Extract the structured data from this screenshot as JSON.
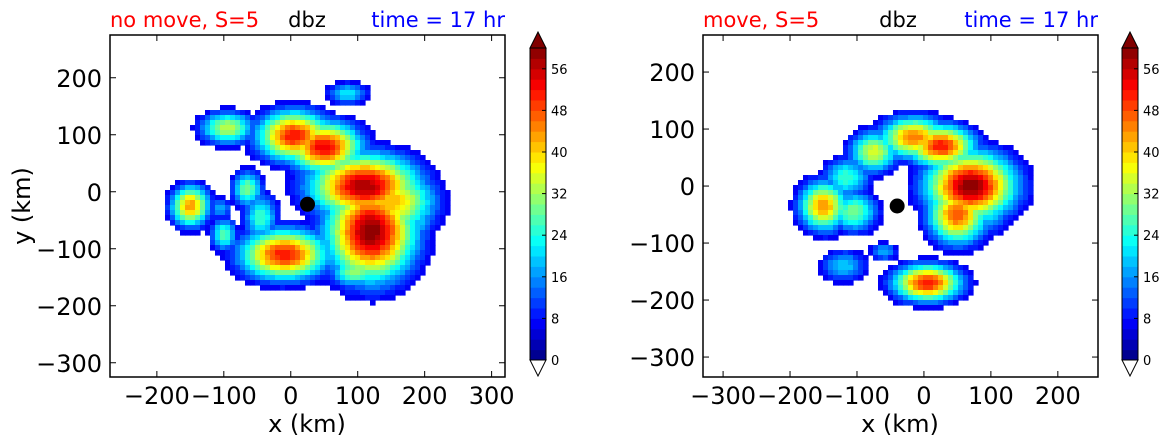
{
  "chart_data": [
    {
      "type": "heatmap",
      "title_left": "no move, S=5",
      "title_center": "dbz",
      "title_right": "time = 17 hr",
      "xlabel": "x (km)",
      "ylabel": "y (km)",
      "xlim": [
        -270,
        320
      ],
      "ylim": [
        -325,
        275
      ],
      "xticks": [
        -200,
        -100,
        0,
        100,
        200,
        300
      ],
      "yticks": [
        -300,
        -200,
        -100,
        0,
        100,
        200
      ],
      "marker": {
        "x": 25,
        "y": -22
      },
      "cells": [
        {
          "x": 5,
          "y": 98,
          "sx": 38,
          "sy": 30,
          "peak": 52
        },
        {
          "x": 50,
          "y": 78,
          "sx": 38,
          "sy": 30,
          "peak": 54
        },
        {
          "x": 85,
          "y": 172,
          "sx": 22,
          "sy": 14,
          "peak": 22
        },
        {
          "x": -95,
          "y": 112,
          "sx": 28,
          "sy": 20,
          "peak": 34
        },
        {
          "x": 110,
          "y": 10,
          "sx": 55,
          "sy": 38,
          "peak": 58
        },
        {
          "x": 150,
          "y": -18,
          "sx": 45,
          "sy": 38,
          "peak": 42
        },
        {
          "x": 120,
          "y": -70,
          "sx": 45,
          "sy": 58,
          "peak": 60
        },
        {
          "x": 190,
          "y": -50,
          "sx": 20,
          "sy": 25,
          "peak": 20
        },
        {
          "x": 95,
          "y": -140,
          "sx": 25,
          "sy": 18,
          "peak": 32
        },
        {
          "x": -10,
          "y": -110,
          "sx": 45,
          "sy": 30,
          "peak": 52
        },
        {
          "x": -45,
          "y": -45,
          "sx": 18,
          "sy": 30,
          "peak": 26
        },
        {
          "x": -65,
          "y": 5,
          "sx": 16,
          "sy": 22,
          "peak": 30
        },
        {
          "x": -150,
          "y": -25,
          "sx": 20,
          "sy": 25,
          "peak": 44
        },
        {
          "x": -100,
          "y": -75,
          "sx": 14,
          "sy": 20,
          "peak": 28
        },
        {
          "x": -105,
          "y": -30,
          "sx": 12,
          "sy": 14,
          "peak": 18
        }
      ]
    },
    {
      "type": "heatmap",
      "title_left": "move, S=5",
      "title_center": "dbz",
      "title_right": "time = 17 hr",
      "xlabel": "x (km)",
      "ylabel": "",
      "xlim": [
        -330,
        260
      ],
      "ylim": [
        -335,
        265
      ],
      "xticks": [
        -300,
        -200,
        -100,
        0,
        100,
        200
      ],
      "yticks": [
        -300,
        -200,
        -100,
        0,
        100,
        200
      ],
      "marker": {
        "x": -40,
        "y": -35
      },
      "cells": [
        {
          "x": -75,
          "y": 60,
          "sx": 25,
          "sy": 25,
          "peak": 36
        },
        {
          "x": -15,
          "y": 85,
          "sx": 35,
          "sy": 25,
          "peak": 46
        },
        {
          "x": 25,
          "y": 70,
          "sx": 35,
          "sy": 25,
          "peak": 52
        },
        {
          "x": 70,
          "y": 0,
          "sx": 45,
          "sy": 40,
          "peak": 60
        },
        {
          "x": 50,
          "y": -50,
          "sx": 30,
          "sy": 35,
          "peak": 48
        },
        {
          "x": 95,
          "y": -40,
          "sx": 25,
          "sy": 30,
          "peak": 24
        },
        {
          "x": -150,
          "y": -35,
          "sx": 25,
          "sy": 30,
          "peak": 44
        },
        {
          "x": -105,
          "y": -45,
          "sx": 25,
          "sy": 25,
          "peak": 30
        },
        {
          "x": -115,
          "y": 15,
          "sx": 25,
          "sy": 25,
          "peak": 26
        },
        {
          "x": -120,
          "y": -140,
          "sx": 25,
          "sy": 20,
          "peak": 20
        },
        {
          "x": 5,
          "y": -170,
          "sx": 35,
          "sy": 22,
          "peak": 52
        },
        {
          "x": -60,
          "y": -115,
          "sx": 15,
          "sy": 12,
          "peak": 18
        }
      ]
    }
  ],
  "colorbar": {
    "min": 0,
    "max": 60,
    "step": 2,
    "ticks": [
      "0",
      "8",
      "16",
      "24",
      "32",
      "40",
      "48",
      "56"
    ],
    "extend": "both",
    "colormap": "jet"
  }
}
